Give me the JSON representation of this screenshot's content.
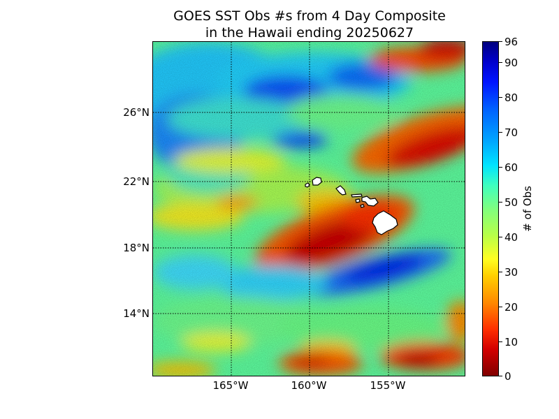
{
  "title": {
    "line1": "GOES SST Obs #s from 4 Day Composite",
    "line2": "in the Hawaii ending 20250627"
  },
  "map": {
    "lat_ticks": [
      "26°N",
      "22°N",
      "18°N",
      "14°N"
    ],
    "lon_ticks": [
      "165°W",
      "160°W",
      "155°W"
    ],
    "gridlines": "dotted",
    "land_color": "#ffffff",
    "features": [
      {
        "name": "Niihau/Kauai"
      },
      {
        "name": "Oahu"
      },
      {
        "name": "Molokai"
      },
      {
        "name": "Lanai"
      },
      {
        "name": "Maui"
      },
      {
        "name": "Kahoolawe"
      },
      {
        "name": "Hawaii (Big Island)"
      }
    ]
  },
  "colorbar": {
    "label": "# of Obs",
    "ticks": [
      "0",
      "10",
      "20",
      "30",
      "40",
      "50",
      "60",
      "70",
      "80",
      "90",
      "96"
    ],
    "range": [
      0,
      96
    ],
    "colormap": "jet",
    "colors": [
      "#800000",
      "#ff0000",
      "#ffff00",
      "#7fff7f",
      "#00ffff",
      "#0000ff",
      "#00007f"
    ]
  }
}
